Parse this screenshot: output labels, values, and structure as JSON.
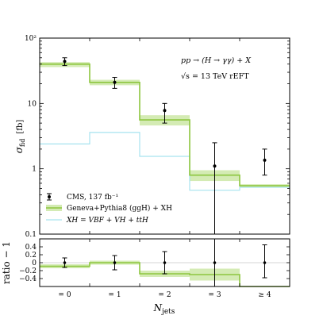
{
  "chart_data": [
    {
      "type": "line",
      "panel": "main",
      "categories": [
        "= 0",
        "= 1",
        "= 2",
        "= 3",
        "≥ 4"
      ],
      "ylabel_main": "σ",
      "ylabel_sub": "fid",
      "ylabel_unit": "[fb]",
      "yscale": "log",
      "ylim": [
        0.1,
        100
      ],
      "yticks": [
        {
          "value": 0.1,
          "label": "0.1"
        },
        {
          "value": 1,
          "label": "1"
        },
        {
          "value": 10,
          "label": "10"
        },
        {
          "value": 100,
          "label": "10²"
        }
      ],
      "annotations": [
        "pp → (H → γγ) + X",
        "√s = 13 TeV   rEFT"
      ],
      "series": [
        {
          "name": "CMS, 137 fb⁻¹",
          "kind": "points",
          "color": "#000000",
          "values": [
            44,
            21,
            7.8,
            1.1,
            1.35
          ],
          "err_low": [
            38,
            17,
            5.0,
            0.1,
            0.8
          ],
          "err_high": [
            50,
            25,
            10.0,
            2.5,
            2.0
          ]
        },
        {
          "name": "Geneva+Pythia8 (ggH) + XH",
          "kind": "step-band",
          "color": "#8dc63f",
          "band_color": "#d4ebb4",
          "values": [
            40,
            21,
            5.6,
            0.8,
            0.55
          ],
          "band_low": [
            36,
            19,
            4.6,
            0.65,
            0.52
          ],
          "band_high": [
            43,
            23,
            6.6,
            0.95,
            0.58
          ]
        },
        {
          "name": "XH = VBF + VH + ttH",
          "kind": "step",
          "color": "#a6e3ef",
          "values": [
            2.4,
            3.6,
            1.55,
            0.47,
            0.52
          ]
        }
      ]
    },
    {
      "type": "line",
      "panel": "ratio",
      "ylabel": "ratio − 1",
      "xlabel_main": "N",
      "xlabel_sub": "jets",
      "ylim": [
        -0.6,
        0.6
      ],
      "ytick_labels": [
        "0.4",
        "0.2",
        "0",
        "−0.2",
        "−0.4"
      ],
      "yticks": [
        0.4,
        0.2,
        0,
        -0.2,
        -0.4
      ],
      "series": [
        {
          "name": "CMS ratio",
          "kind": "points",
          "values": [
            0.0,
            0.0,
            0.0,
            0.0,
            0.0
          ],
          "err_low": [
            -0.12,
            -0.18,
            -0.28,
            -1.0,
            -0.38
          ],
          "err_high": [
            0.12,
            0.18,
            0.28,
            1.0,
            0.45
          ]
        },
        {
          "name": "Geneva ratio",
          "kind": "step-band",
          "values": [
            -0.09,
            0.0,
            -0.28,
            -0.3,
            -1.0
          ],
          "band_low": [
            -0.14,
            -0.05,
            -0.36,
            -0.45,
            -1.0
          ],
          "band_high": [
            -0.04,
            0.05,
            -0.2,
            -0.15,
            -1.0
          ]
        }
      ]
    }
  ],
  "legend": {
    "placement": "bottom-left",
    "items": [
      {
        "label": "CMS, 137 fb⁻¹"
      },
      {
        "label": "Geneva+Pythia8 (ggH) + XH"
      },
      {
        "label": "XH = VBF + VH + ttH"
      }
    ]
  }
}
